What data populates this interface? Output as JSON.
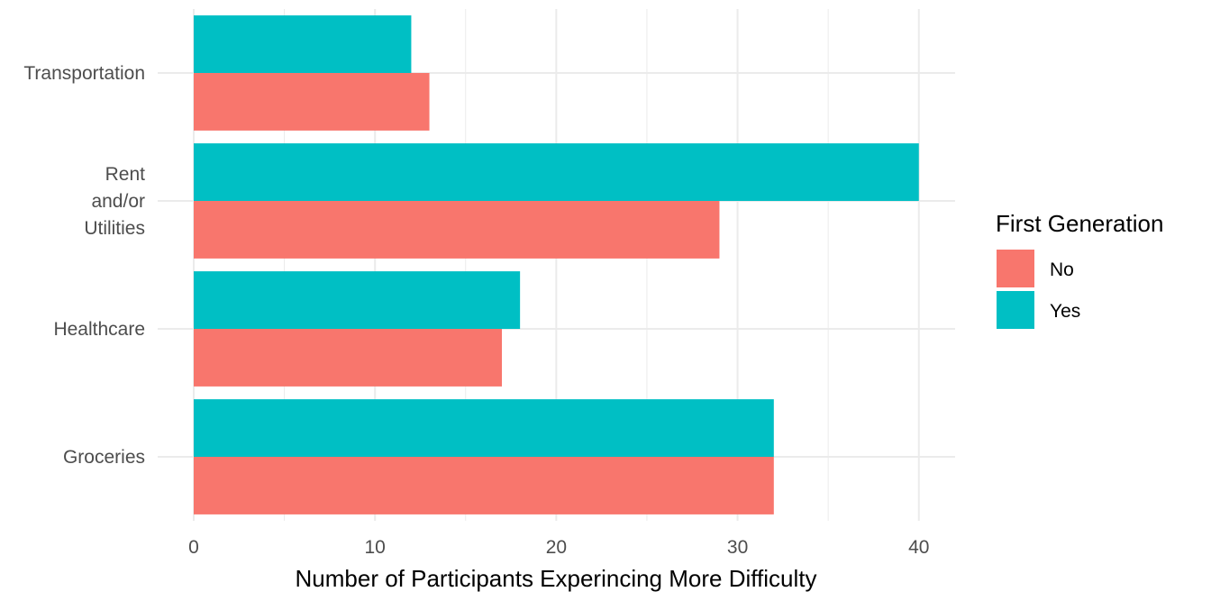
{
  "chart_data": {
    "type": "bar",
    "orientation": "horizontal",
    "categories": [
      "Groceries",
      "Healthcare",
      "Rent\nand/or\nUtilities",
      "Transportation"
    ],
    "series": [
      {
        "name": "No",
        "color": "#F8766D",
        "values": [
          32,
          17,
          29,
          13
        ]
      },
      {
        "name": "Yes",
        "color": "#00BFC4",
        "values": [
          32,
          18,
          40,
          12
        ]
      }
    ],
    "xlabel": "Number of Participants Experincing More Difficulty",
    "ylabel": "",
    "xlim": [
      0,
      42
    ],
    "xticks": [
      0,
      10,
      20,
      30,
      40
    ],
    "grid": true,
    "legend": {
      "title": "First Generation",
      "position": "right"
    }
  }
}
